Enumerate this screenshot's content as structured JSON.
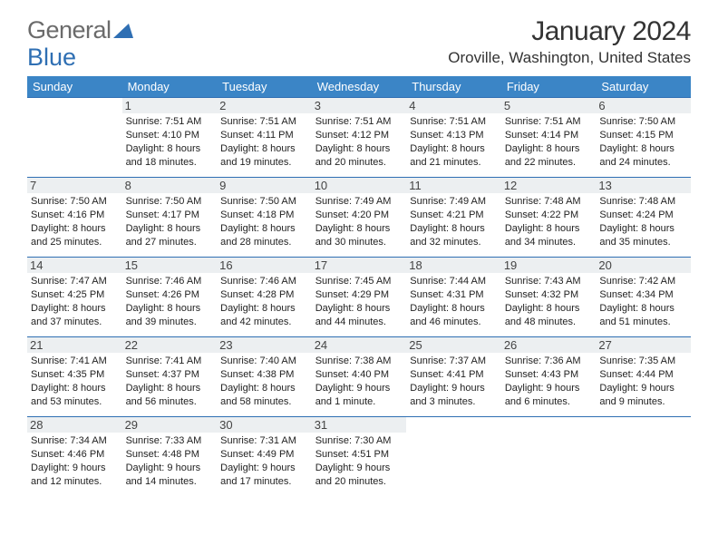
{
  "logo": {
    "general": "General",
    "blue": "Blue"
  },
  "title": "January 2024",
  "location": "Oroville, Washington, United States",
  "weekday_header_bg": "#3b85c6",
  "weekday_header_fg": "#ffffff",
  "border_color": "#2f6fb3",
  "daynum_bg": "#eceff1",
  "weekdays": [
    "Sunday",
    "Monday",
    "Tuesday",
    "Wednesday",
    "Thursday",
    "Friday",
    "Saturday"
  ],
  "weeks": [
    [
      {
        "n": "",
        "sunrise": "",
        "sunset": "",
        "daylight": ""
      },
      {
        "n": "1",
        "sunrise": "Sunrise: 7:51 AM",
        "sunset": "Sunset: 4:10 PM",
        "daylight": "Daylight: 8 hours and 18 minutes."
      },
      {
        "n": "2",
        "sunrise": "Sunrise: 7:51 AM",
        "sunset": "Sunset: 4:11 PM",
        "daylight": "Daylight: 8 hours and 19 minutes."
      },
      {
        "n": "3",
        "sunrise": "Sunrise: 7:51 AM",
        "sunset": "Sunset: 4:12 PM",
        "daylight": "Daylight: 8 hours and 20 minutes."
      },
      {
        "n": "4",
        "sunrise": "Sunrise: 7:51 AM",
        "sunset": "Sunset: 4:13 PM",
        "daylight": "Daylight: 8 hours and 21 minutes."
      },
      {
        "n": "5",
        "sunrise": "Sunrise: 7:51 AM",
        "sunset": "Sunset: 4:14 PM",
        "daylight": "Daylight: 8 hours and 22 minutes."
      },
      {
        "n": "6",
        "sunrise": "Sunrise: 7:50 AM",
        "sunset": "Sunset: 4:15 PM",
        "daylight": "Daylight: 8 hours and 24 minutes."
      }
    ],
    [
      {
        "n": "7",
        "sunrise": "Sunrise: 7:50 AM",
        "sunset": "Sunset: 4:16 PM",
        "daylight": "Daylight: 8 hours and 25 minutes."
      },
      {
        "n": "8",
        "sunrise": "Sunrise: 7:50 AM",
        "sunset": "Sunset: 4:17 PM",
        "daylight": "Daylight: 8 hours and 27 minutes."
      },
      {
        "n": "9",
        "sunrise": "Sunrise: 7:50 AM",
        "sunset": "Sunset: 4:18 PM",
        "daylight": "Daylight: 8 hours and 28 minutes."
      },
      {
        "n": "10",
        "sunrise": "Sunrise: 7:49 AM",
        "sunset": "Sunset: 4:20 PM",
        "daylight": "Daylight: 8 hours and 30 minutes."
      },
      {
        "n": "11",
        "sunrise": "Sunrise: 7:49 AM",
        "sunset": "Sunset: 4:21 PM",
        "daylight": "Daylight: 8 hours and 32 minutes."
      },
      {
        "n": "12",
        "sunrise": "Sunrise: 7:48 AM",
        "sunset": "Sunset: 4:22 PM",
        "daylight": "Daylight: 8 hours and 34 minutes."
      },
      {
        "n": "13",
        "sunrise": "Sunrise: 7:48 AM",
        "sunset": "Sunset: 4:24 PM",
        "daylight": "Daylight: 8 hours and 35 minutes."
      }
    ],
    [
      {
        "n": "14",
        "sunrise": "Sunrise: 7:47 AM",
        "sunset": "Sunset: 4:25 PM",
        "daylight": "Daylight: 8 hours and 37 minutes."
      },
      {
        "n": "15",
        "sunrise": "Sunrise: 7:46 AM",
        "sunset": "Sunset: 4:26 PM",
        "daylight": "Daylight: 8 hours and 39 minutes."
      },
      {
        "n": "16",
        "sunrise": "Sunrise: 7:46 AM",
        "sunset": "Sunset: 4:28 PM",
        "daylight": "Daylight: 8 hours and 42 minutes."
      },
      {
        "n": "17",
        "sunrise": "Sunrise: 7:45 AM",
        "sunset": "Sunset: 4:29 PM",
        "daylight": "Daylight: 8 hours and 44 minutes."
      },
      {
        "n": "18",
        "sunrise": "Sunrise: 7:44 AM",
        "sunset": "Sunset: 4:31 PM",
        "daylight": "Daylight: 8 hours and 46 minutes."
      },
      {
        "n": "19",
        "sunrise": "Sunrise: 7:43 AM",
        "sunset": "Sunset: 4:32 PM",
        "daylight": "Daylight: 8 hours and 48 minutes."
      },
      {
        "n": "20",
        "sunrise": "Sunrise: 7:42 AM",
        "sunset": "Sunset: 4:34 PM",
        "daylight": "Daylight: 8 hours and 51 minutes."
      }
    ],
    [
      {
        "n": "21",
        "sunrise": "Sunrise: 7:41 AM",
        "sunset": "Sunset: 4:35 PM",
        "daylight": "Daylight: 8 hours and 53 minutes."
      },
      {
        "n": "22",
        "sunrise": "Sunrise: 7:41 AM",
        "sunset": "Sunset: 4:37 PM",
        "daylight": "Daylight: 8 hours and 56 minutes."
      },
      {
        "n": "23",
        "sunrise": "Sunrise: 7:40 AM",
        "sunset": "Sunset: 4:38 PM",
        "daylight": "Daylight: 8 hours and 58 minutes."
      },
      {
        "n": "24",
        "sunrise": "Sunrise: 7:38 AM",
        "sunset": "Sunset: 4:40 PM",
        "daylight": "Daylight: 9 hours and 1 minute."
      },
      {
        "n": "25",
        "sunrise": "Sunrise: 7:37 AM",
        "sunset": "Sunset: 4:41 PM",
        "daylight": "Daylight: 9 hours and 3 minutes."
      },
      {
        "n": "26",
        "sunrise": "Sunrise: 7:36 AM",
        "sunset": "Sunset: 4:43 PM",
        "daylight": "Daylight: 9 hours and 6 minutes."
      },
      {
        "n": "27",
        "sunrise": "Sunrise: 7:35 AM",
        "sunset": "Sunset: 4:44 PM",
        "daylight": "Daylight: 9 hours and 9 minutes."
      }
    ],
    [
      {
        "n": "28",
        "sunrise": "Sunrise: 7:34 AM",
        "sunset": "Sunset: 4:46 PM",
        "daylight": "Daylight: 9 hours and 12 minutes."
      },
      {
        "n": "29",
        "sunrise": "Sunrise: 7:33 AM",
        "sunset": "Sunset: 4:48 PM",
        "daylight": "Daylight: 9 hours and 14 minutes."
      },
      {
        "n": "30",
        "sunrise": "Sunrise: 7:31 AM",
        "sunset": "Sunset: 4:49 PM",
        "daylight": "Daylight: 9 hours and 17 minutes."
      },
      {
        "n": "31",
        "sunrise": "Sunrise: 7:30 AM",
        "sunset": "Sunset: 4:51 PM",
        "daylight": "Daylight: 9 hours and 20 minutes."
      },
      {
        "n": "",
        "sunrise": "",
        "sunset": "",
        "daylight": ""
      },
      {
        "n": "",
        "sunrise": "",
        "sunset": "",
        "daylight": ""
      },
      {
        "n": "",
        "sunrise": "",
        "sunset": "",
        "daylight": ""
      }
    ]
  ]
}
